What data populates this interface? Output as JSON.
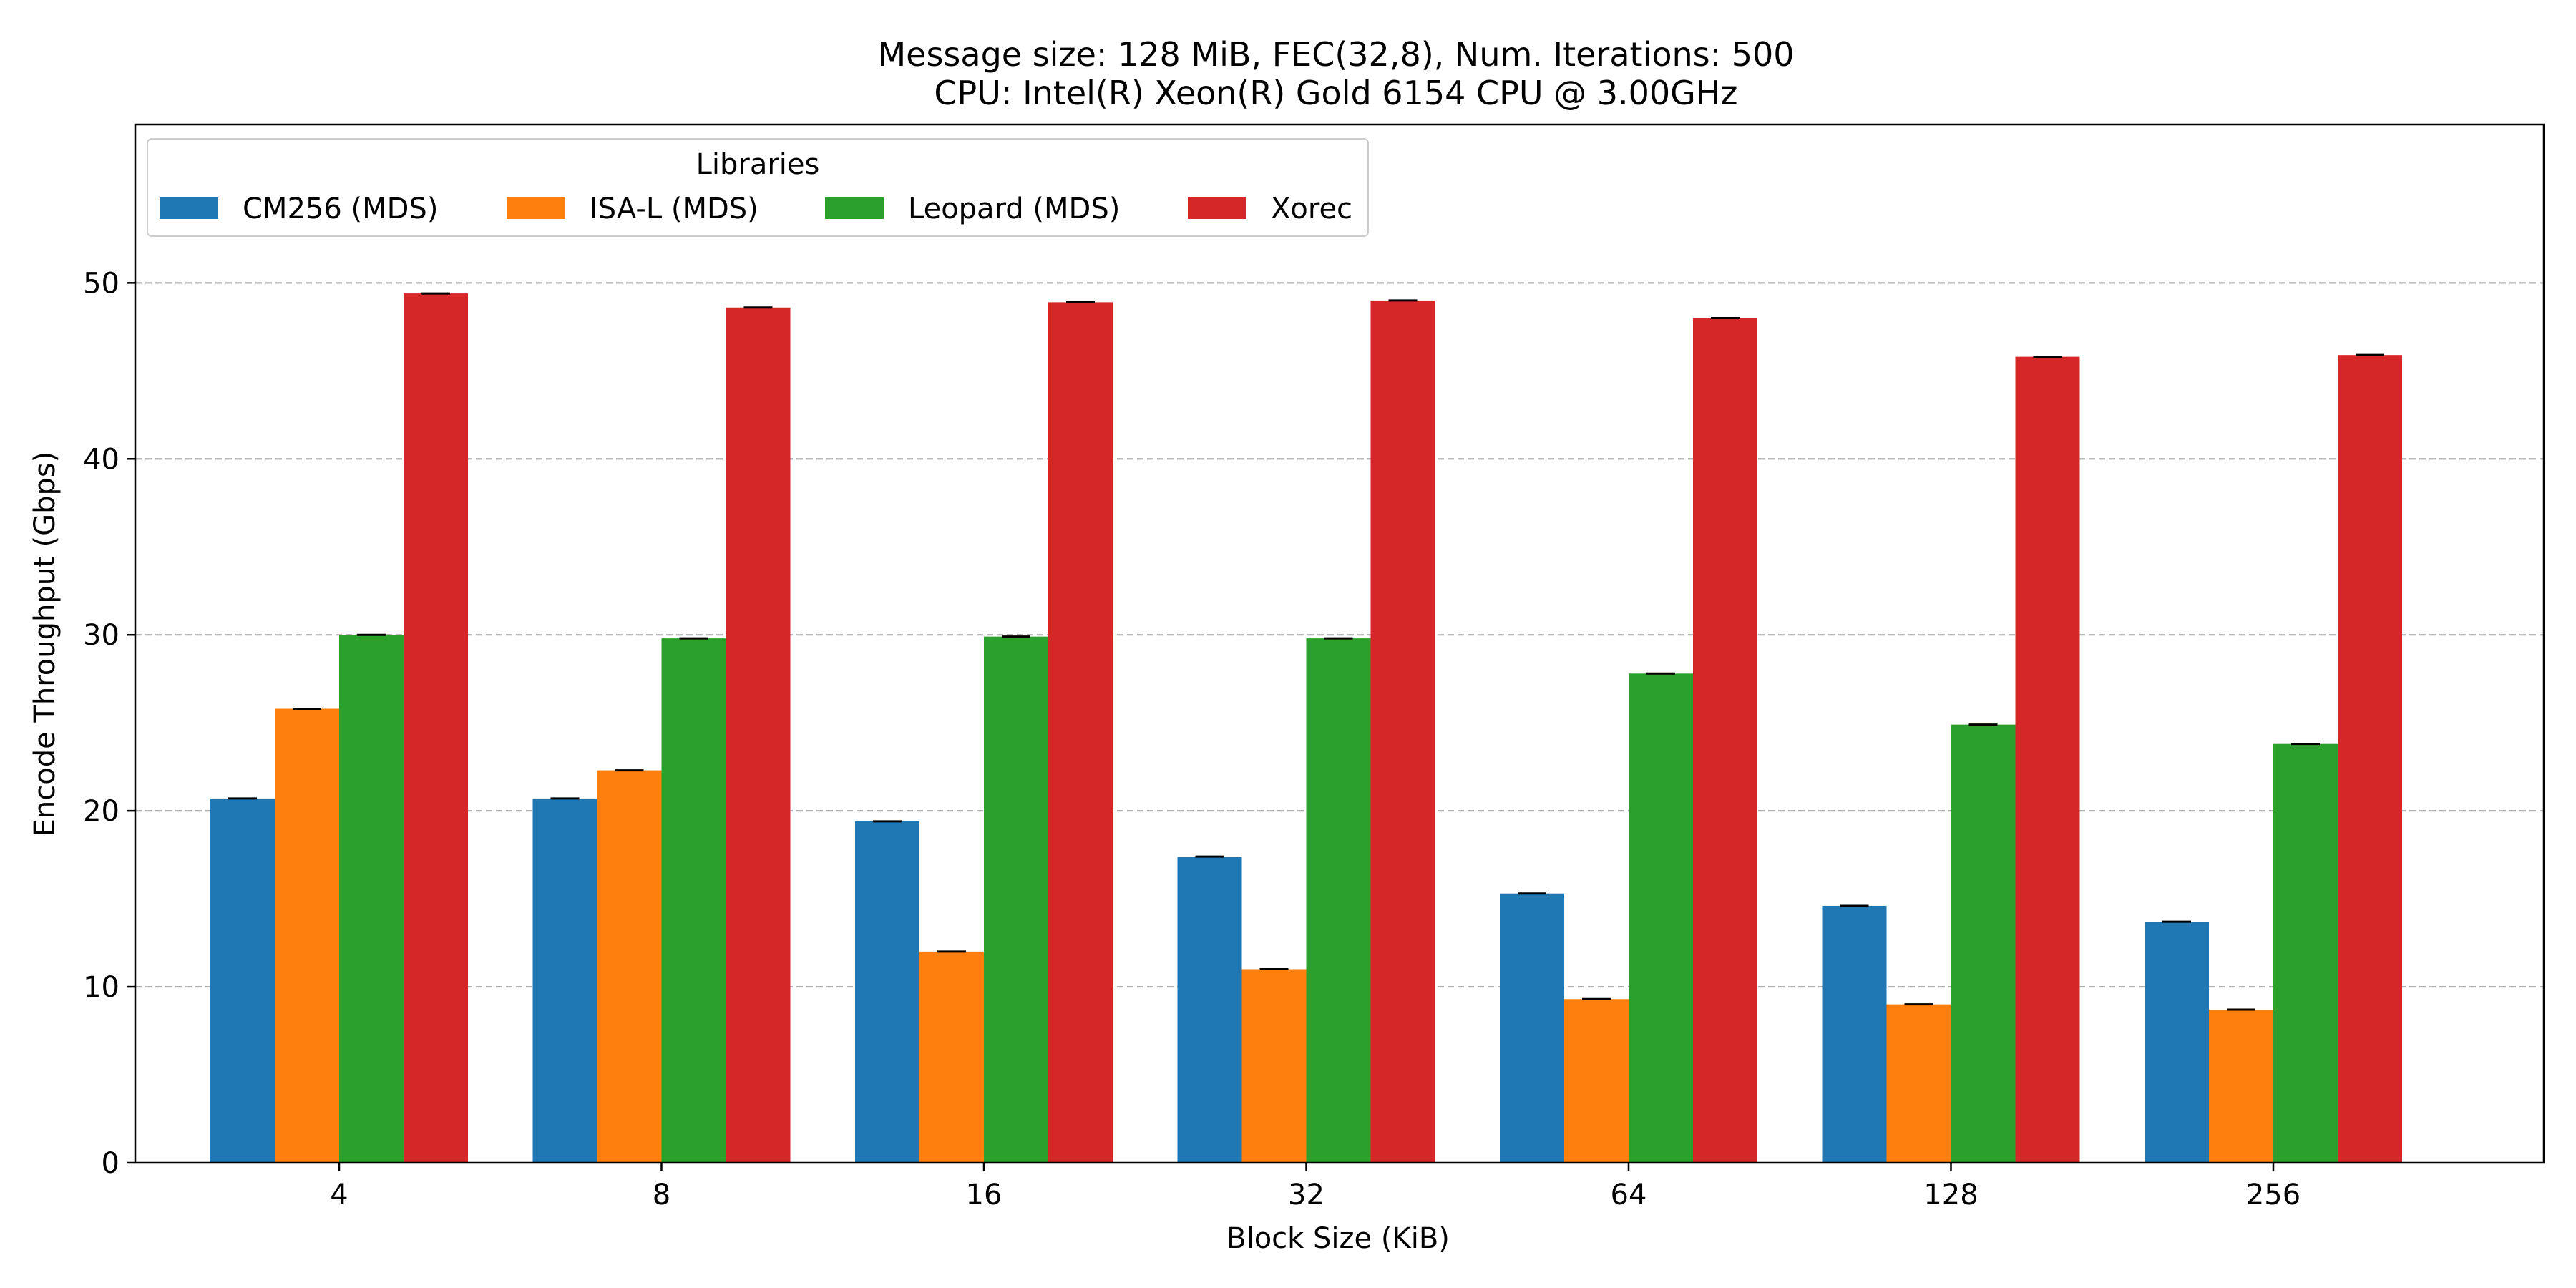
{
  "chart_data": {
    "type": "bar",
    "title_lines": [
      "Message size: 128 MiB, FEC(32,8), Num. Iterations: 500",
      "CPU: Intel(R) Xeon(R) Gold 6154 CPU @ 3.00GHz"
    ],
    "xlabel": "Block Size (KiB)",
    "ylabel": "Encode Throughput (Gbps)",
    "categories": [
      "4",
      "8",
      "16",
      "32",
      "64",
      "128",
      "256"
    ],
    "ylim": [
      0,
      59
    ],
    "yticks": [
      0,
      10,
      20,
      30,
      40,
      50
    ],
    "grid": "y-dashed",
    "legend": {
      "title": "Libraries",
      "placement": "top-left",
      "ncol": 4
    },
    "error_bars": true,
    "series": [
      {
        "name": "CM256 (MDS)",
        "color": "#1f77b4",
        "values": [
          20.7,
          20.7,
          19.4,
          17.4,
          15.3,
          14.6,
          13.7
        ]
      },
      {
        "name": "ISA-L (MDS)",
        "color": "#ff7f0e",
        "values": [
          25.8,
          22.3,
          12.0,
          11.0,
          9.3,
          9.0,
          8.7
        ]
      },
      {
        "name": "Leopard (MDS)",
        "color": "#2ca02c",
        "values": [
          30.0,
          29.8,
          29.9,
          29.8,
          27.8,
          24.9,
          23.8
        ]
      },
      {
        "name": "Xorec",
        "color": "#d62728",
        "values": [
          49.4,
          48.6,
          48.9,
          49.0,
          48.0,
          45.8,
          45.9
        ]
      }
    ]
  }
}
